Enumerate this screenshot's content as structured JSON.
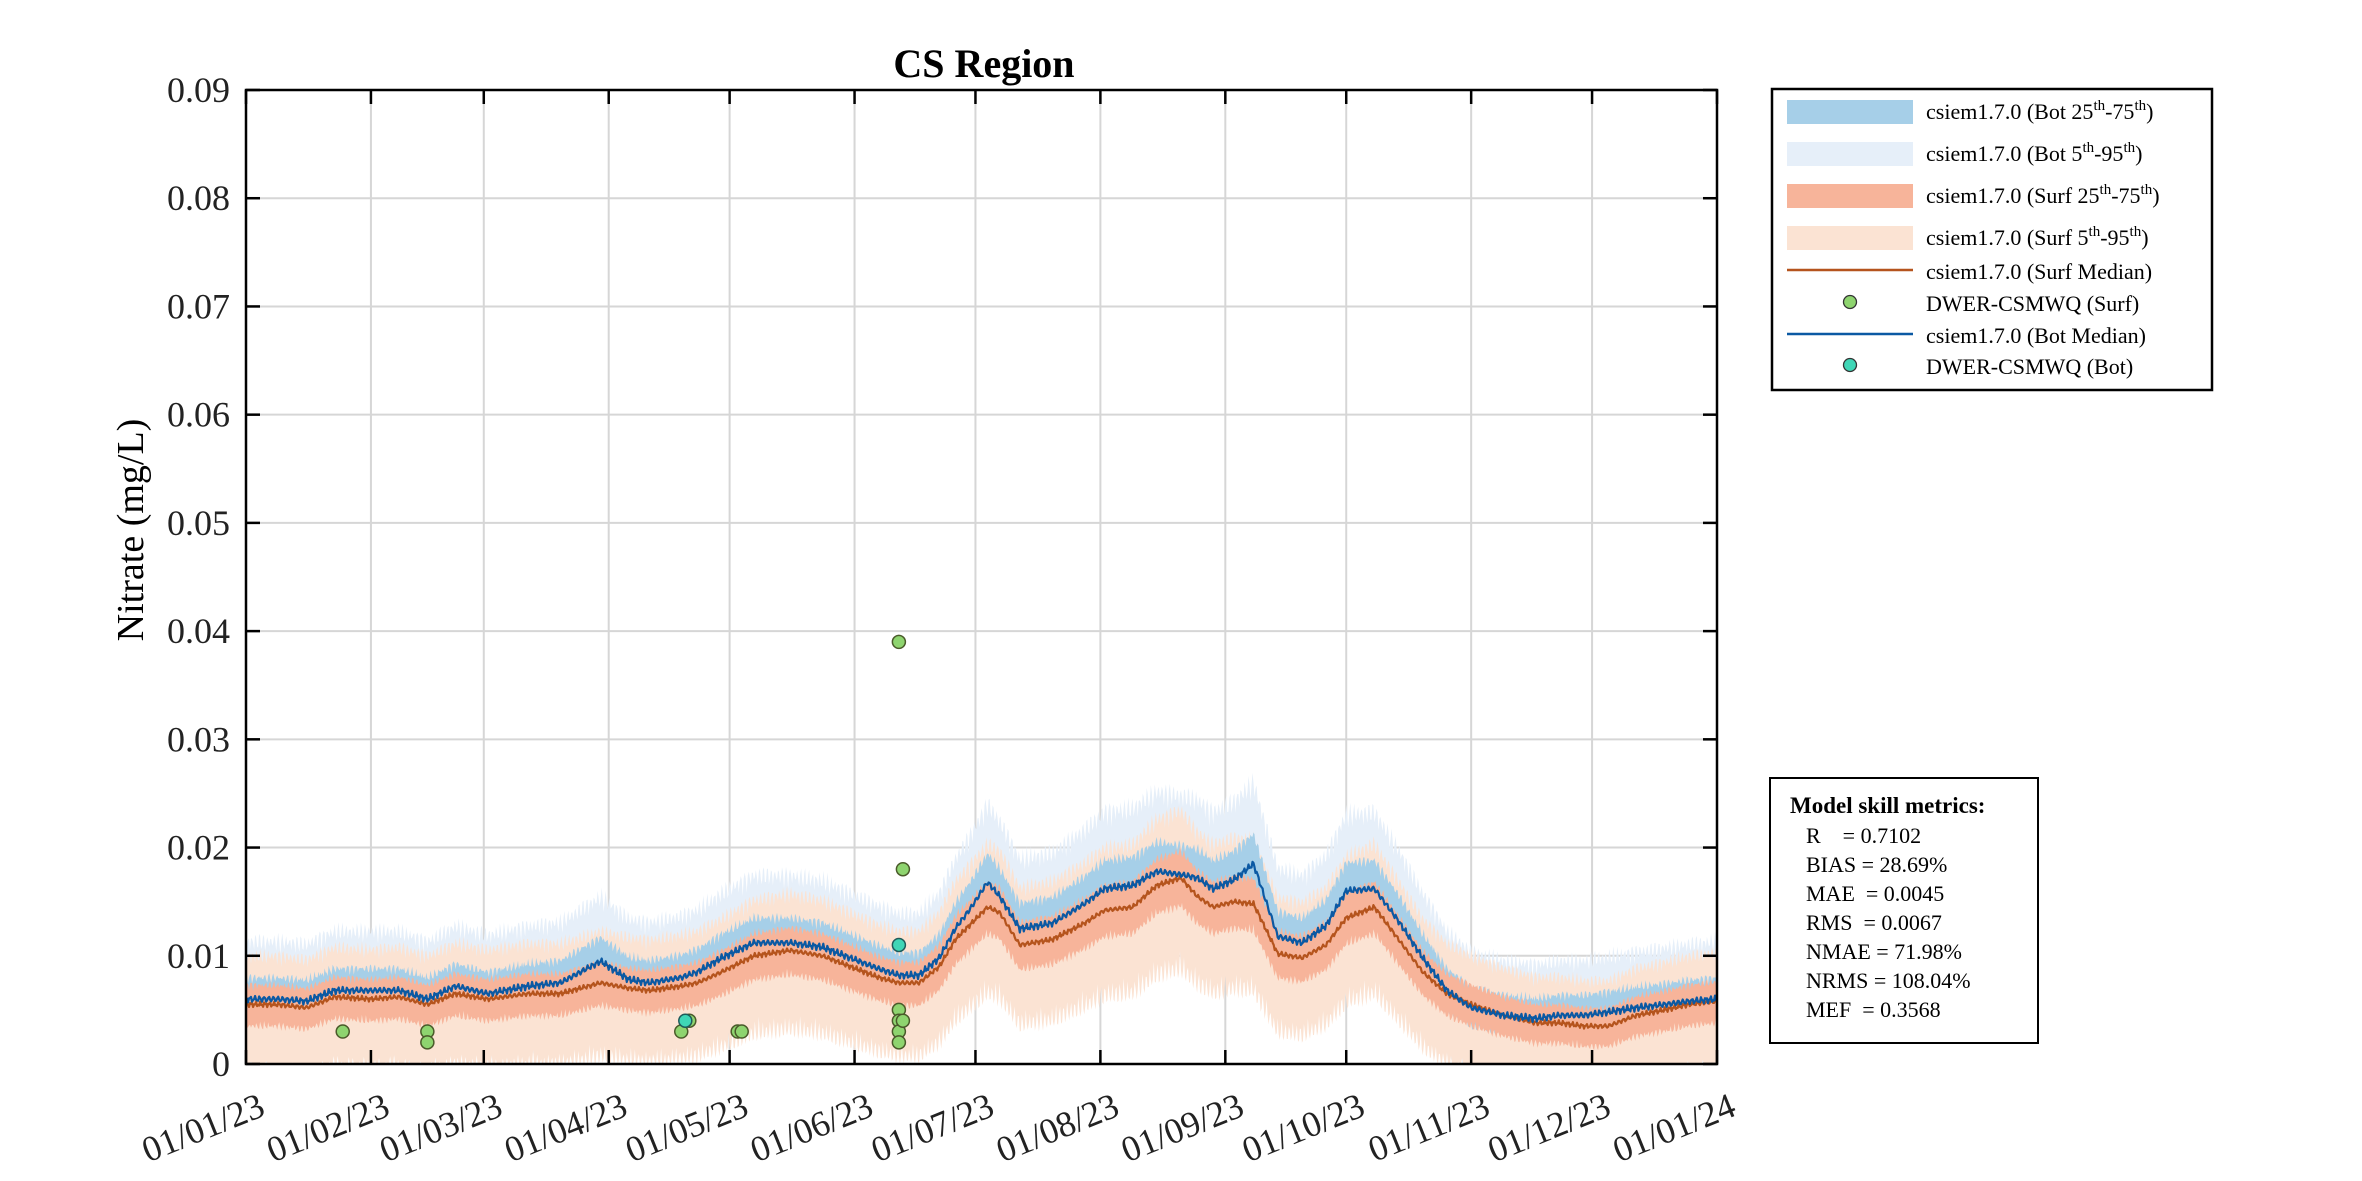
{
  "chart_data": {
    "type": "line",
    "title": "CS Region",
    "xlabel": "",
    "ylabel": "Nitrate (mg/L)",
    "ylim": [
      0,
      0.09
    ],
    "yticks": [
      0,
      0.01,
      0.02,
      0.03,
      0.04,
      0.05,
      0.06,
      0.07,
      0.08,
      0.09
    ],
    "ytick_labels": [
      "0",
      "0.01",
      "0.02",
      "0.03",
      "0.04",
      "0.05",
      "0.06",
      "0.07",
      "0.08",
      "0.09"
    ],
    "xlim_day": [
      0,
      365
    ],
    "xticks_day": [
      0,
      31,
      59,
      90,
      120,
      151,
      181,
      212,
      243,
      273,
      304,
      334,
      365
    ],
    "xtick_labels": [
      "01/01/23",
      "01/02/23",
      "01/03/23",
      "01/04/23",
      "01/05/23",
      "01/06/23",
      "01/07/23",
      "01/08/23",
      "01/09/23",
      "01/10/23",
      "01/11/23",
      "01/12/23",
      "01/01/24"
    ],
    "grid": true,
    "legend_placement": "outside-top-right",
    "colors": {
      "bot_25_75": "#a6cfe8",
      "bot_5_95": "#e6eff9",
      "surf_25_75": "#f7b49a",
      "surf_5_95": "#fbe3d3",
      "surf_median": "#b5541d",
      "bot_median": "#0b59a3",
      "surf_obs_fill": "#8ed46f",
      "bot_obs_fill": "#3fd6b6",
      "grid": "#d6d6d6"
    },
    "legend": [
      {
        "key": "bot_25_75",
        "kind": "band",
        "prefix": "csiem1.7.0 (Bot 25",
        "sup1": "th",
        "mid": "-75",
        "sup2": "th",
        "suffix": ")"
      },
      {
        "key": "bot_5_95",
        "kind": "band",
        "prefix": "csiem1.7.0 (Bot 5",
        "sup1": "th",
        "mid": "-95",
        "sup2": "th",
        "suffix": ")"
      },
      {
        "key": "surf_25_75",
        "kind": "band",
        "prefix": "csiem1.7.0 (Surf 25",
        "sup1": "th",
        "mid": "-75",
        "sup2": "th",
        "suffix": ")"
      },
      {
        "key": "surf_5_95",
        "kind": "band",
        "prefix": "csiem1.7.0 (Surf 5",
        "sup1": "th",
        "mid": "-95",
        "sup2": "th",
        "suffix": ")"
      },
      {
        "key": "surf_median",
        "kind": "line",
        "prefix": "csiem1.7.0 (Surf Median)"
      },
      {
        "key": "surf_obs_fill",
        "kind": "marker",
        "prefix": "DWER-CSMWQ (Surf)"
      },
      {
        "key": "bot_median",
        "kind": "line",
        "prefix": "csiem1.7.0 (Bot Median)"
      },
      {
        "key": "bot_obs_fill",
        "kind": "marker",
        "prefix": "DWER-CSMWQ (Bot)"
      }
    ],
    "series": [
      {
        "name": "csiem1.7.0 (Surf Median)",
        "anchors_day": [
          0,
          8,
          15,
          22,
          31,
          38,
          45,
          52,
          60,
          70,
          78,
          88,
          95,
          100,
          108,
          112,
          118,
          126,
          135,
          143,
          150,
          157,
          162,
          167,
          172,
          176,
          180,
          184,
          187,
          192,
          200,
          208,
          213,
          220,
          226,
          232,
          236,
          240,
          245,
          250,
          256,
          262,
          268,
          273,
          280,
          286,
          292,
          298,
          304,
          312,
          320,
          326,
          332,
          338,
          345,
          352,
          358,
          365
        ],
        "anchors_val": [
          0.0055,
          0.0055,
          0.0052,
          0.0062,
          0.006,
          0.0062,
          0.0055,
          0.0065,
          0.006,
          0.0065,
          0.0065,
          0.0075,
          0.007,
          0.0068,
          0.0072,
          0.0075,
          0.0085,
          0.01,
          0.0105,
          0.01,
          0.009,
          0.008,
          0.0075,
          0.0075,
          0.009,
          0.0115,
          0.013,
          0.0145,
          0.014,
          0.011,
          0.0115,
          0.013,
          0.0142,
          0.0145,
          0.0165,
          0.0172,
          0.0155,
          0.0145,
          0.015,
          0.0148,
          0.0102,
          0.0098,
          0.011,
          0.0135,
          0.0145,
          0.0115,
          0.0085,
          0.0065,
          0.0055,
          0.0045,
          0.0038,
          0.0038,
          0.0035,
          0.0035,
          0.0045,
          0.005,
          0.0055,
          0.0058
        ]
      },
      {
        "name": "csiem1.7.0 (Bot Median)",
        "anchors_day": [
          0,
          8,
          15,
          22,
          31,
          38,
          45,
          52,
          60,
          70,
          78,
          88,
          95,
          100,
          108,
          112,
          118,
          126,
          135,
          143,
          150,
          157,
          162,
          167,
          172,
          176,
          180,
          184,
          187,
          192,
          200,
          208,
          213,
          220,
          226,
          232,
          236,
          240,
          245,
          250,
          256,
          262,
          268,
          273,
          280,
          286,
          292,
          298,
          304,
          312,
          320,
          326,
          332,
          338,
          345,
          352,
          358,
          365
        ],
        "anchors_val": [
          0.006,
          0.006,
          0.0058,
          0.0068,
          0.0068,
          0.0068,
          0.006,
          0.0072,
          0.0065,
          0.0072,
          0.0075,
          0.0095,
          0.0078,
          0.0075,
          0.008,
          0.0085,
          0.0098,
          0.0112,
          0.0112,
          0.0108,
          0.0098,
          0.0088,
          0.0082,
          0.0082,
          0.0098,
          0.0125,
          0.0145,
          0.0168,
          0.0155,
          0.0125,
          0.013,
          0.0148,
          0.0162,
          0.0165,
          0.0178,
          0.0175,
          0.0172,
          0.0162,
          0.017,
          0.0185,
          0.0118,
          0.0112,
          0.0128,
          0.016,
          0.0162,
          0.0132,
          0.0098,
          0.0068,
          0.0052,
          0.0045,
          0.0042,
          0.0045,
          0.0045,
          0.0048,
          0.0052,
          0.0055,
          0.0058,
          0.006
        ]
      }
    ],
    "observations": {
      "surf": {
        "name": "DWER-CSMWQ (Surf)",
        "day": [
          24,
          45,
          45,
          108,
          110,
          122,
          123,
          162,
          162,
          162,
          162,
          162,
          163,
          163
        ],
        "value": [
          0.003,
          0.003,
          0.002,
          0.003,
          0.004,
          0.003,
          0.003,
          0.039,
          0.005,
          0.004,
          0.003,
          0.002,
          0.018,
          0.004
        ]
      },
      "bot": {
        "name": "DWER-CSMWQ (Bot)",
        "day": [
          109,
          162
        ],
        "value": [
          0.004,
          0.011
        ]
      }
    },
    "metrics": {
      "title": "Model skill metrics:",
      "rows": [
        "R    = 0.7102",
        "BIAS = 28.69%",
        "MAE  = 0.0045",
        "RMS  = 0.0067",
        "NMAE = 71.98%",
        "NRMS = 108.04%",
        "MEF  = 0.3568"
      ]
    }
  }
}
